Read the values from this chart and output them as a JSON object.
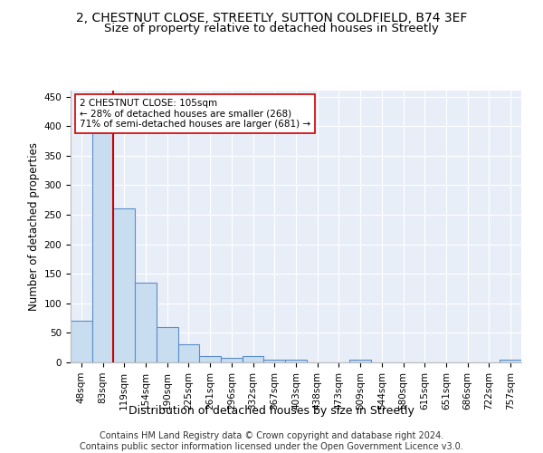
{
  "title1": "2, CHESTNUT CLOSE, STREETLY, SUTTON COLDFIELD, B74 3EF",
  "title2": "Size of property relative to detached houses in Streetly",
  "xlabel": "Distribution of detached houses by size in Streetly",
  "ylabel": "Number of detached properties",
  "bar_labels": [
    "48sqm",
    "83sqm",
    "119sqm",
    "154sqm",
    "190sqm",
    "225sqm",
    "261sqm",
    "296sqm",
    "332sqm",
    "367sqm",
    "403sqm",
    "438sqm",
    "473sqm",
    "509sqm",
    "544sqm",
    "580sqm",
    "615sqm",
    "651sqm",
    "686sqm",
    "722sqm",
    "757sqm"
  ],
  "bar_values": [
    70,
    390,
    260,
    135,
    60,
    30,
    10,
    8,
    10,
    5,
    5,
    0,
    0,
    4,
    0,
    0,
    0,
    0,
    0,
    0,
    4
  ],
  "bar_color": "#c9ddf0",
  "bar_edge_color": "#5a8ec8",
  "bar_edge_width": 0.8,
  "red_line_color": "#cc0000",
  "red_line_x": 1.5,
  "annotation_text_line1": "2 CHESTNUT CLOSE: 105sqm",
  "annotation_text_line2": "← 28% of detached houses are smaller (268)",
  "annotation_text_line3": "71% of semi-detached houses are larger (681) →",
  "ylim": [
    0,
    460
  ],
  "yticks": [
    0,
    50,
    100,
    150,
    200,
    250,
    300,
    350,
    400,
    450
  ],
  "fig_bg_color": "#ffffff",
  "plot_bg_color": "#e8eef8",
  "grid_color": "#ffffff",
  "footer1": "Contains HM Land Registry data © Crown copyright and database right 2024.",
  "footer2": "Contains public sector information licensed under the Open Government Licence v3.0.",
  "title1_fontsize": 10,
  "title2_fontsize": 9.5,
  "xlabel_fontsize": 9,
  "ylabel_fontsize": 8.5,
  "tick_fontsize": 7.5,
  "annotation_fontsize": 7.5,
  "footer_fontsize": 7
}
